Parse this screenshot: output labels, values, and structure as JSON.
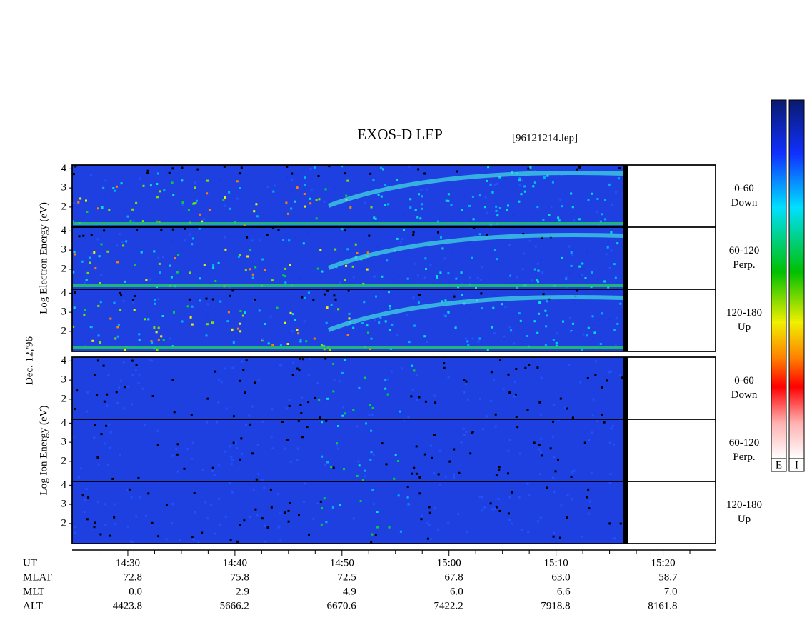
{
  "chart_data": {
    "type": "spectrogram",
    "title": "EXOS-D LEP",
    "file_label": "[96121214.lep]",
    "date_label": "Dec. 12,'96",
    "xlim": [
      864.8,
      924.9
    ],
    "xticks": [
      {
        "value": 870,
        "label": "14:30"
      },
      {
        "value": 880,
        "label": "14:40"
      },
      {
        "value": 890,
        "label": "14:50"
      },
      {
        "value": 900,
        "label": "15:00"
      },
      {
        "value": 910,
        "label": "15:10"
      },
      {
        "value": 920,
        "label": "15:20"
      }
    ],
    "xminorticks": [
      867.5,
      872.5,
      875,
      877.5,
      882.5,
      885,
      887.5,
      892.5,
      895,
      897.5,
      902.5,
      905,
      907.5,
      912.5,
      915,
      917.5,
      922.5
    ],
    "ylim": [
      0.95,
      4.2
    ],
    "yticks": [
      2,
      3,
      4
    ],
    "groups": [
      {
        "ylabel": "Log   Electron   Energy (eV)",
        "panels": [
          {
            "angle": "0-60",
            "direction": "Down"
          },
          {
            "angle": "60-120",
            "direction": "Perp."
          },
          {
            "angle": "120-180",
            "direction": "Up"
          }
        ]
      },
      {
        "ylabel": "Log   Ion   Energy (eV)",
        "panels": [
          {
            "angle": "0-60",
            "direction": "Down"
          },
          {
            "angle": "60-120",
            "direction": "Perp."
          },
          {
            "angle": "120-180",
            "direction": "Up"
          }
        ]
      }
    ],
    "ephemeris": [
      {
        "label": "UT"
      },
      {
        "label": "MLAT",
        "values": [
          "72.8",
          "75.8",
          "72.5",
          "67.8",
          "63.0",
          "58.7"
        ]
      },
      {
        "label": "MLT",
        "values": [
          "0.0",
          "2.9",
          "4.9",
          "6.0",
          "6.6",
          "7.0"
        ]
      },
      {
        "label": "ALT",
        "values": [
          "4423.8",
          "5666.2",
          "6670.6",
          "7422.2",
          "7918.8",
          "8161.8"
        ]
      }
    ],
    "colorbar_labels": [
      "E",
      "I"
    ]
  }
}
